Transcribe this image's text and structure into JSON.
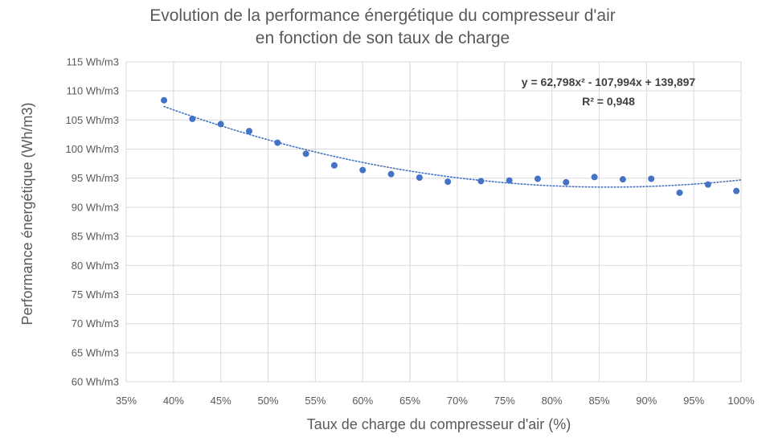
{
  "chart_data": {
    "type": "scatter",
    "title_line1": "Evolution de la performance énergétique du compresseur d'air",
    "title_line2": "en fonction de son taux de charge",
    "xlabel": "Taux de charge du compresseur d'air (%)",
    "ylabel": "Performance énergétique (Wh/m3)",
    "xlim": [
      0.35,
      1.0
    ],
    "ylim": [
      60,
      115
    ],
    "x_ticks": [
      {
        "value": 0.35,
        "label": "35%"
      },
      {
        "value": 0.4,
        "label": "40%"
      },
      {
        "value": 0.45,
        "label": "45%"
      },
      {
        "value": 0.5,
        "label": "50%"
      },
      {
        "value": 0.55,
        "label": "55%"
      },
      {
        "value": 0.6,
        "label": "60%"
      },
      {
        "value": 0.65,
        "label": "65%"
      },
      {
        "value": 0.7,
        "label": "70%"
      },
      {
        "value": 0.75,
        "label": "75%"
      },
      {
        "value": 0.8,
        "label": "80%"
      },
      {
        "value": 0.85,
        "label": "85%"
      },
      {
        "value": 0.9,
        "label": "90%"
      },
      {
        "value": 0.95,
        "label": "95%"
      },
      {
        "value": 1.0,
        "label": "100%"
      }
    ],
    "y_ticks": [
      {
        "value": 115,
        "label": "115 Wh/m3"
      },
      {
        "value": 110,
        "label": "110 Wh/m3"
      },
      {
        "value": 105,
        "label": "105 Wh/m3"
      },
      {
        "value": 100,
        "label": "100 Wh/m3"
      },
      {
        "value": 95,
        "label": "95 Wh/m3"
      },
      {
        "value": 90,
        "label": "90 Wh/m3"
      },
      {
        "value": 85,
        "label": "85 Wh/m3"
      },
      {
        "value": 80,
        "label": "80 Wh/m3"
      },
      {
        "value": 75,
        "label": "75 Wh/m3"
      },
      {
        "value": 70,
        "label": "70 Wh/m3"
      },
      {
        "value": 65,
        "label": "65 Wh/m3"
      },
      {
        "value": 60,
        "label": "60 Wh/m3"
      }
    ],
    "points": [
      {
        "x": 0.39,
        "y": 108.4
      },
      {
        "x": 0.42,
        "y": 105.2
      },
      {
        "x": 0.45,
        "y": 104.3
      },
      {
        "x": 0.48,
        "y": 103.1
      },
      {
        "x": 0.51,
        "y": 101.1
      },
      {
        "x": 0.54,
        "y": 99.2
      },
      {
        "x": 0.57,
        "y": 97.2
      },
      {
        "x": 0.6,
        "y": 96.4
      },
      {
        "x": 0.63,
        "y": 95.7
      },
      {
        "x": 0.66,
        "y": 95.1
      },
      {
        "x": 0.69,
        "y": 94.4
      },
      {
        "x": 0.725,
        "y": 94.5
      },
      {
        "x": 0.755,
        "y": 94.6
      },
      {
        "x": 0.785,
        "y": 94.9
      },
      {
        "x": 0.815,
        "y": 94.3
      },
      {
        "x": 0.845,
        "y": 95.2
      },
      {
        "x": 0.875,
        "y": 94.8
      },
      {
        "x": 0.905,
        "y": 94.9
      },
      {
        "x": 0.935,
        "y": 92.5
      },
      {
        "x": 0.965,
        "y": 93.9
      },
      {
        "x": 0.995,
        "y": 92.8
      }
    ],
    "trendline": {
      "type": "polynomial",
      "coefficients": [
        62.798,
        -107.994,
        139.897
      ],
      "x_range": [
        0.39,
        1.0
      ],
      "style": "dotted",
      "equation": "y = 62,798x² - 107,994x + 139,897",
      "r_squared": "R² = 0,948"
    },
    "grid": true,
    "legend": "none",
    "colors": {
      "marker": "#4472c4",
      "trendline": "#4472c4",
      "grid": "#d9d9d9",
      "text": "#595959"
    }
  }
}
